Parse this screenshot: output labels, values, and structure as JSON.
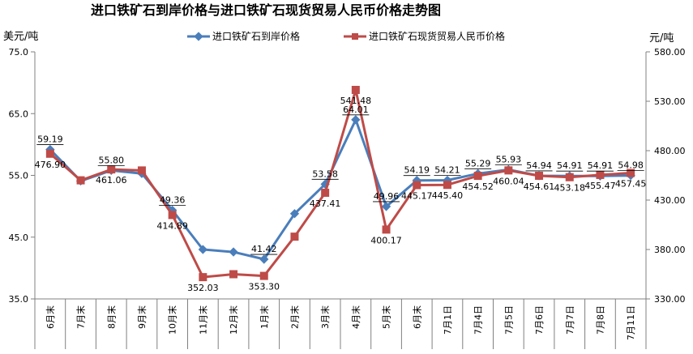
{
  "chart_data": {
    "type": "line",
    "title": "进口铁矿石到岸价格与进口铁矿石现货贸易人民币价格走势图",
    "ylabel_left": "美元/吨",
    "ylabel_right": "元/吨",
    "ylim_left": [
      35.0,
      75.0
    ],
    "ylim_right": [
      330.0,
      580.0
    ],
    "yticks_left": [
      "35.0",
      "45.0",
      "55.0",
      "65.0",
      "75.0"
    ],
    "yticks_right": [
      "330.00",
      "380.00",
      "430.00",
      "480.00",
      "530.00",
      "580.00"
    ],
    "categories": [
      "6月末",
      "7月末",
      "8月末",
      "9月末",
      "10月末",
      "11月末",
      "12月末",
      "1月末",
      "2月末",
      "3月末",
      "4月末",
      "5月末",
      "6月末",
      "7月1日",
      "7月4日",
      "7月5日",
      "7月6日",
      "7月7日",
      "7月8日",
      "7月11日"
    ],
    "legend_position": "top",
    "grid": false,
    "series": [
      {
        "name": "进口铁矿石到岸价格",
        "axis": "left",
        "color": "#4a7ebb",
        "marker": "diamond",
        "values": [
          59.19,
          54.1,
          55.8,
          55.3,
          49.36,
          43.0,
          42.6,
          41.42,
          48.8,
          53.58,
          64.01,
          49.96,
          54.19,
          54.21,
          55.29,
          55.93,
          54.94,
          54.91,
          54.91,
          54.98
        ],
        "labels": [
          "59.19",
          "",
          "55.80",
          "",
          "49.36",
          "",
          "",
          "41.42",
          "",
          "53.58",
          "64.01",
          "49.96",
          "54.19",
          "54.21",
          "55.29",
          "55.93",
          "54.94",
          "54.91",
          "54.91",
          "54.98"
        ]
      },
      {
        "name": "进口铁矿石现货贸易人民币价格",
        "axis": "right",
        "color": "#be4b48",
        "marker": "square",
        "values": [
          476.9,
          450.0,
          461.06,
          460.0,
          414.89,
          352.03,
          355.0,
          353.3,
          393.0,
          437.41,
          541.48,
          400.17,
          445.17,
          445.4,
          454.52,
          460.04,
          454.61,
          453.18,
          455.47,
          457.45
        ],
        "labels": [
          "476.90",
          "",
          "461.06",
          "",
          "414.89",
          "352.03",
          "",
          "353.30",
          "",
          "437.41",
          "541.48",
          "400.17",
          "445.17",
          "445.40",
          "454.52",
          "460.04",
          "454.61",
          "453.18",
          "455.47",
          "457.45"
        ]
      }
    ]
  }
}
